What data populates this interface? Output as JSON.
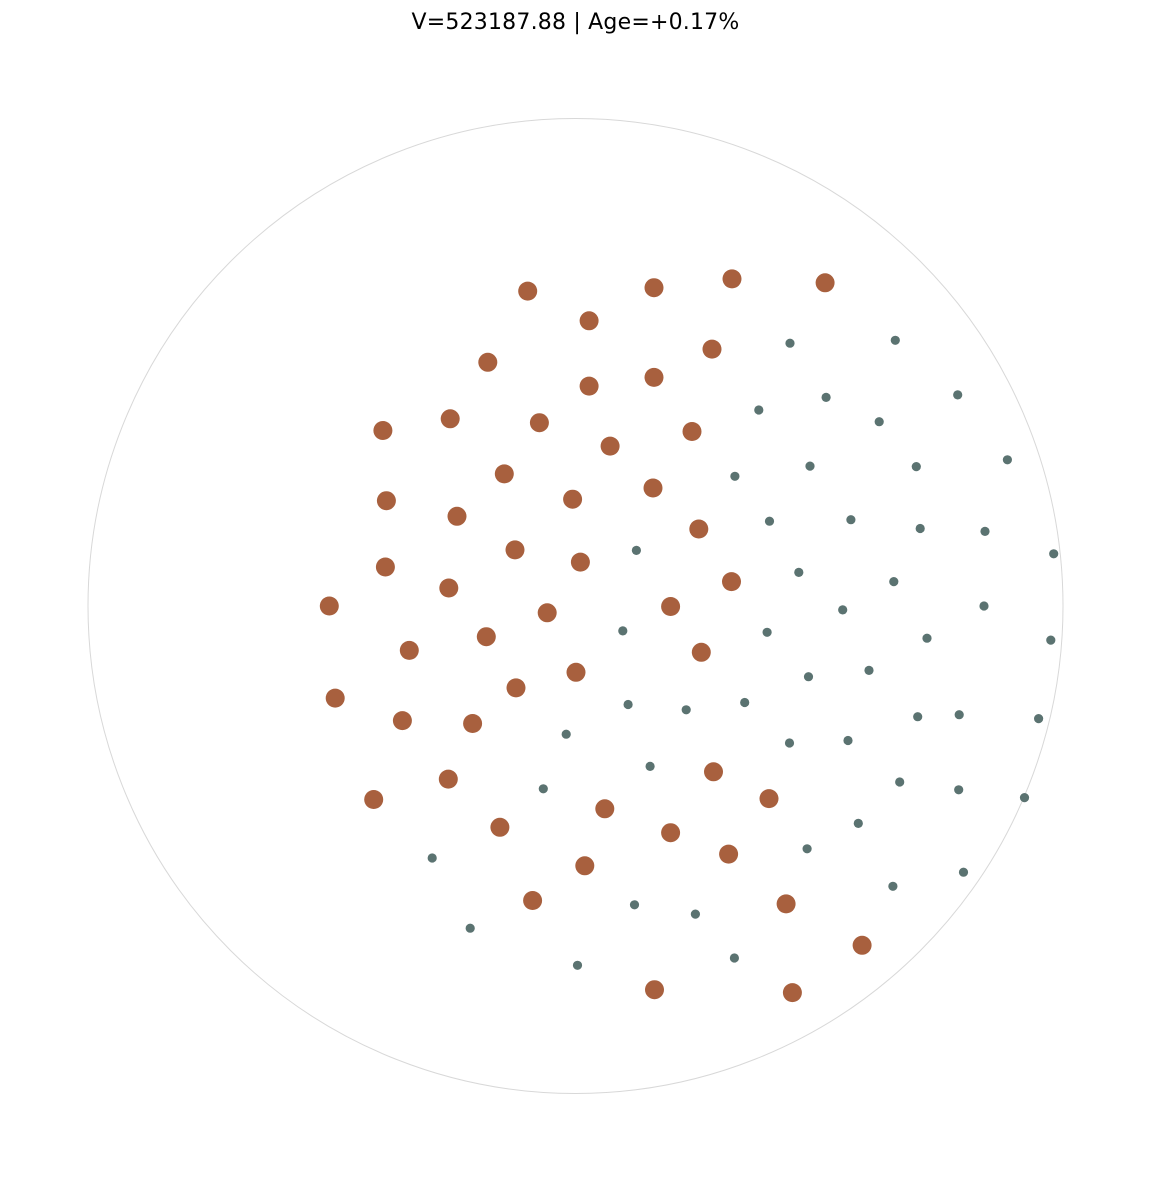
{
  "chart_data": {
    "type": "scatter",
    "title": "V=523187.88 | Age=+0.17%",
    "colors": {
      "large": "#a8603e",
      "small": "#5b7371",
      "boundary": "#d8d8d8"
    },
    "large_points": [
      [
        -0.098,
        0.646
      ],
      [
        0.161,
        0.653
      ],
      [
        0.321,
        0.671
      ],
      [
        0.512,
        0.663
      ],
      [
        0.028,
        0.585
      ],
      [
        0.28,
        0.527
      ],
      [
        -0.18,
        0.5
      ],
      [
        0.161,
        0.469
      ],
      [
        0.028,
        0.451
      ],
      [
        -0.395,
        0.36
      ],
      [
        -0.257,
        0.384
      ],
      [
        -0.074,
        0.376
      ],
      [
        0.071,
        0.328
      ],
      [
        0.239,
        0.358
      ],
      [
        -0.146,
        0.271
      ],
      [
        0.159,
        0.242
      ],
      [
        -0.006,
        0.219
      ],
      [
        -0.388,
        0.216
      ],
      [
        -0.243,
        0.184
      ],
      [
        0.253,
        0.158
      ],
      [
        -0.124,
        0.115
      ],
      [
        0.01,
        0.09
      ],
      [
        -0.39,
        0.08
      ],
      [
        -0.26,
        0.037
      ],
      [
        0.32,
        0.05
      ],
      [
        -0.505,
        0.0
      ],
      [
        -0.058,
        -0.014
      ],
      [
        0.195,
        -0.001
      ],
      [
        -0.341,
        -0.091
      ],
      [
        -0.183,
        -0.063
      ],
      [
        0.258,
        -0.095
      ],
      [
        0.001,
        -0.136
      ],
      [
        -0.122,
        -0.168
      ],
      [
        -0.493,
        -0.189
      ],
      [
        -0.355,
        -0.235
      ],
      [
        -0.211,
        -0.241
      ],
      [
        0.283,
        -0.34
      ],
      [
        -0.261,
        -0.355
      ],
      [
        -0.414,
        -0.397
      ],
      [
        0.06,
        -0.416
      ],
      [
        0.397,
        -0.395
      ],
      [
        -0.155,
        -0.454
      ],
      [
        0.195,
        -0.465
      ],
      [
        0.314,
        -0.509
      ],
      [
        0.019,
        -0.533
      ],
      [
        -0.088,
        -0.604
      ],
      [
        0.432,
        -0.611
      ],
      [
        0.588,
        -0.696
      ],
      [
        0.162,
        -0.787
      ],
      [
        0.445,
        -0.793
      ]
    ],
    "small_points": [
      [
        0.44,
        0.539
      ],
      [
        0.656,
        0.545
      ],
      [
        0.514,
        0.428
      ],
      [
        0.784,
        0.433
      ],
      [
        0.376,
        0.402
      ],
      [
        0.623,
        0.378
      ],
      [
        0.481,
        0.287
      ],
      [
        0.699,
        0.286
      ],
      [
        0.886,
        0.3
      ],
      [
        0.327,
        0.266
      ],
      [
        0.398,
        0.174
      ],
      [
        0.565,
        0.177
      ],
      [
        0.707,
        0.159
      ],
      [
        0.84,
        0.153
      ],
      [
        0.125,
        0.114
      ],
      [
        0.981,
        0.107
      ],
      [
        0.458,
        0.069
      ],
      [
        0.653,
        0.05
      ],
      [
        0.548,
        -0.008
      ],
      [
        0.838,
        0.0
      ],
      [
        0.097,
        -0.051
      ],
      [
        0.393,
        -0.054
      ],
      [
        0.721,
        -0.066
      ],
      [
        0.975,
        -0.07
      ],
      [
        0.478,
        -0.145
      ],
      [
        0.602,
        -0.132
      ],
      [
        0.108,
        -0.202
      ],
      [
        0.227,
        -0.213
      ],
      [
        0.347,
        -0.198
      ],
      [
        0.702,
        -0.227
      ],
      [
        0.787,
        -0.223
      ],
      [
        -0.019,
        -0.263
      ],
      [
        0.439,
        -0.281
      ],
      [
        0.559,
        -0.276
      ],
      [
        0.95,
        -0.231
      ],
      [
        0.153,
        -0.329
      ],
      [
        -0.066,
        -0.375
      ],
      [
        0.665,
        -0.361
      ],
      [
        0.786,
        -0.377
      ],
      [
        0.921,
        -0.393
      ],
      [
        0.58,
        -0.446
      ],
      [
        0.475,
        -0.498
      ],
      [
        -0.294,
        -0.517
      ],
      [
        0.651,
        -0.575
      ],
      [
        0.796,
        -0.546
      ],
      [
        0.121,
        -0.613
      ],
      [
        0.246,
        -0.632
      ],
      [
        -0.216,
        -0.661
      ],
      [
        0.326,
        -0.722
      ],
      [
        0.004,
        -0.737
      ]
    ]
  }
}
